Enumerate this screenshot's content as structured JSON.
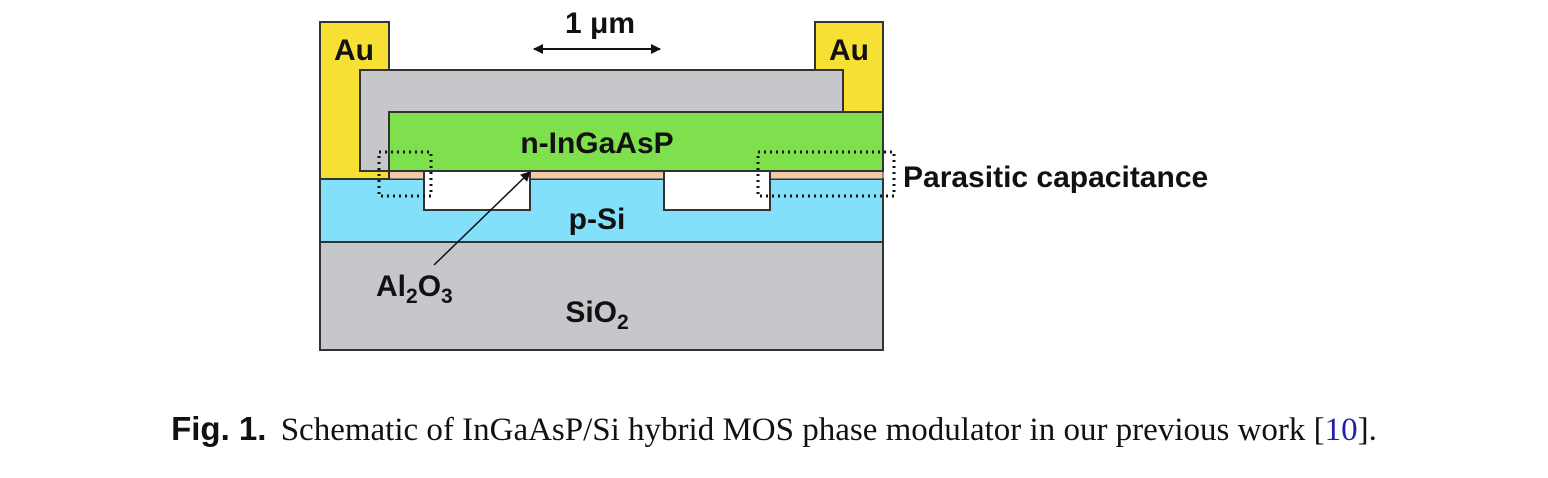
{
  "diagram": {
    "scale_label": "1 μm",
    "layers": {
      "contact_left": "Au",
      "contact_right": "Au",
      "n_layer": "n-InGaAsP",
      "p_layer": "p-Si",
      "substrate": "SiO",
      "substrate_sub": "2",
      "oxide_main": "Al",
      "oxide_sub1": "2",
      "oxide_mid": "O",
      "oxide_sub2": "3"
    },
    "annotation": "Parasitic capacitance",
    "colors": {
      "gold": "#f7e034",
      "gray": "#c6c7cb",
      "green": "#7ee04d",
      "cyan": "#82e0fb",
      "oxide": "#f0c9a6",
      "outline": "#333333"
    }
  },
  "caption": {
    "label": "Fig. 1.",
    "text": "Schematic of InGaAsP/Si hybrid MOS phase modulator in our previous work ",
    "ref_open": "[",
    "ref": "10",
    "ref_close": "].",
    "ref_tail": ""
  }
}
